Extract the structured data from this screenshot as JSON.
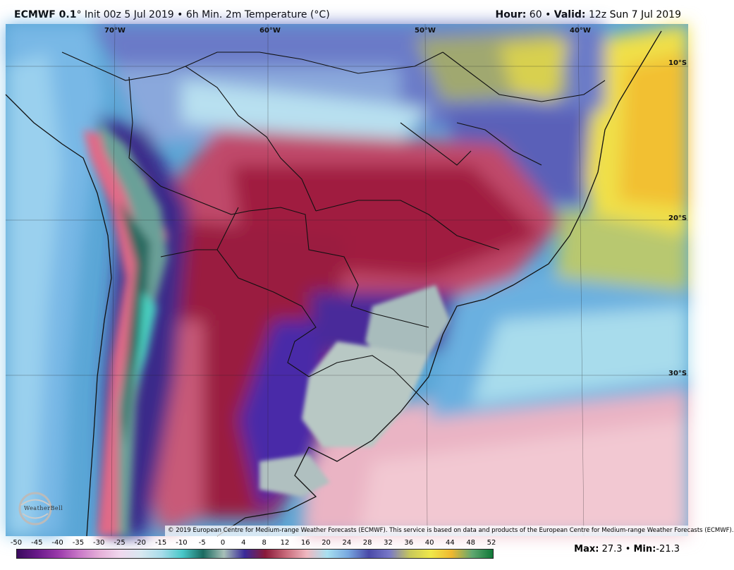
{
  "header": {
    "model": "ECMWF 0.1",
    "deg": "°",
    "init": "Init 00z 5 Jul 2019",
    "bullet": "•",
    "product": "6h Min. 2m Temperature (°C)",
    "hour_label": "Hour:",
    "hour_value": "60",
    "valid_label": "Valid:",
    "valid_value": "12z Sun 7 Jul 2019"
  },
  "map": {
    "longitude_labels": [
      "70°W",
      "60°W",
      "50°W",
      "40°W"
    ],
    "latitude_labels": [
      "10°S",
      "20°S",
      "30°S"
    ],
    "copyright": "© 2019 European Centre for Medium-range Weather Forecasts (ECMWF). This service is based on data and products of the European Centre for Medium-range Weather Forecasts (ECMWF).",
    "logo": "WeatherBell"
  },
  "colorbar": {
    "tick_labels": [
      "-50",
      "-45",
      "-40",
      "-35",
      "-30",
      "-25",
      "-20",
      "-15",
      "-10",
      "-5",
      "0",
      "4",
      "8",
      "12",
      "16",
      "20",
      "24",
      "28",
      "32",
      "36",
      "40",
      "44",
      "48",
      "52"
    ],
    "colors": [
      "#3a0a5e",
      "#6a1a8a",
      "#9a3aaa",
      "#c978c8",
      "#e6b0d8",
      "#f0d8ee",
      "#d8e8f0",
      "#a8dcea",
      "#48c8c8",
      "#1a6a60",
      "#a8c0b8",
      "#3a2a9a",
      "#8a1a3a",
      "#c86a7a",
      "#f0b8c0",
      "#a8e0f0",
      "#78a8e0",
      "#4a4aa8",
      "#7878c8",
      "#c8c85a",
      "#f0e84a",
      "#f0b830",
      "#60a870",
      "#107838"
    ],
    "colors_note": ""
  },
  "stats": {
    "max_label": "Max:",
    "max_value": "27.3",
    "min_label": "Min:",
    "min_value": "-21.3",
    "bullet": "•"
  }
}
